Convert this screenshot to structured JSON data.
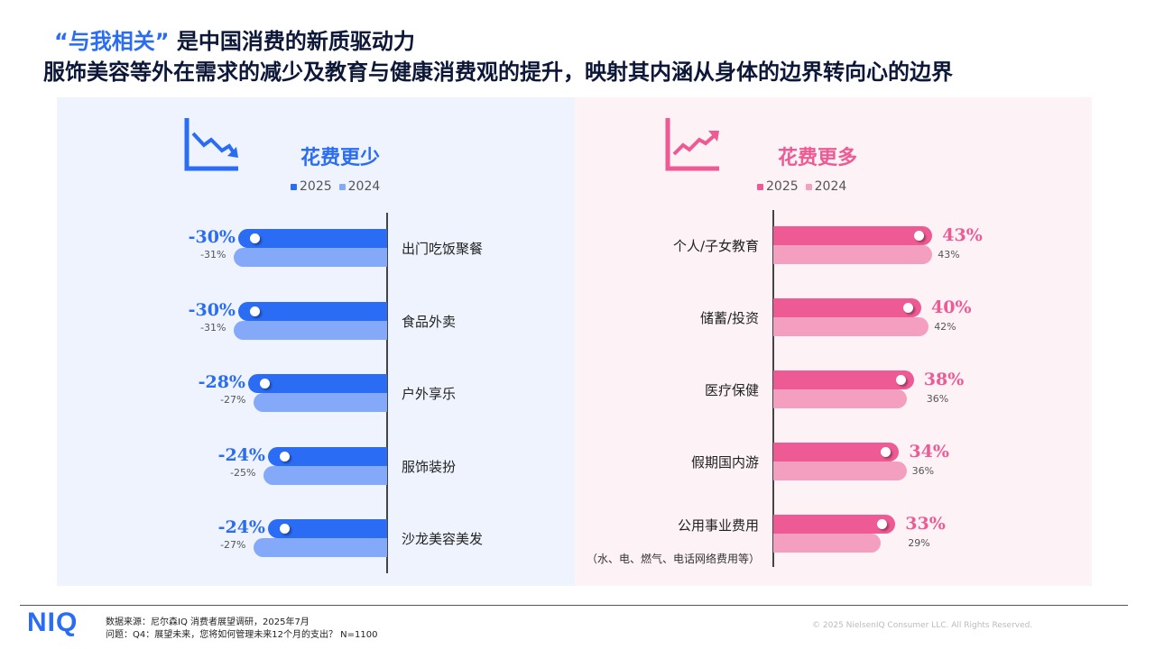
{
  "title": {
    "highlight": "“与我相关”",
    "rest": " 是中国消费的新质驱动力",
    "subtitle": "服饰美容等外在需求的减少及教育与健康消费观的提升，映射其内涵从身体的边界转向心的边界"
  },
  "colors": {
    "blue2025": "#2a6cf4",
    "blue2024": "#84a9f8",
    "pink2025": "#ee5a93",
    "pink2024": "#f49fbf"
  },
  "chart_data": [
    {
      "type": "bar",
      "orientation": "horizontal",
      "title": "花费更少",
      "icon": "trend-down-icon",
      "legend": [
        "2025",
        "2024"
      ],
      "categories": [
        "出门吃饭聚餐",
        "食品外卖",
        "户外享乐",
        "服饰装扮",
        "沙龙美容美发"
      ],
      "series": [
        {
          "name": "2025",
          "values": [
            -30,
            -30,
            -28,
            -24,
            -24
          ]
        },
        {
          "name": "2024",
          "values": [
            -31,
            -31,
            -27,
            -25,
            -27
          ]
        }
      ],
      "labels2025": [
        "-30%",
        "-30%",
        "-28%",
        "-24%",
        "-24%"
      ],
      "labels2024": [
        "-31%",
        "-31%",
        "-27%",
        "-25%",
        "-27%"
      ]
    },
    {
      "type": "bar",
      "orientation": "horizontal",
      "title": "花费更多",
      "icon": "trend-up-icon",
      "legend": [
        "2025",
        "2024"
      ],
      "categories": [
        "个人/子女教育",
        "储蓄/投资",
        "医疗保健",
        "假期国内游",
        "公用事业费用"
      ],
      "category_note": "（水、电、燃气、电话网络费用等）",
      "series": [
        {
          "name": "2025",
          "values": [
            43,
            40,
            38,
            34,
            33
          ]
        },
        {
          "name": "2024",
          "values": [
            43,
            42,
            36,
            36,
            29
          ]
        }
      ],
      "labels2025": [
        "43%",
        "40%",
        "38%",
        "34%",
        "33%"
      ],
      "labels2024": [
        "43%",
        "42%",
        "36%",
        "36%",
        "29%"
      ]
    }
  ],
  "footer": {
    "logo": "NIQ",
    "source": "数据来源：尼尔森IQ 消费者展望调研，2025年7月",
    "question": "问题：Q4：展望未来，您将如何管理未来12个月的支出？ N=1100",
    "copyright": "© 2025 NielsenIQ Consumer LLC. All Rights Reserved."
  }
}
